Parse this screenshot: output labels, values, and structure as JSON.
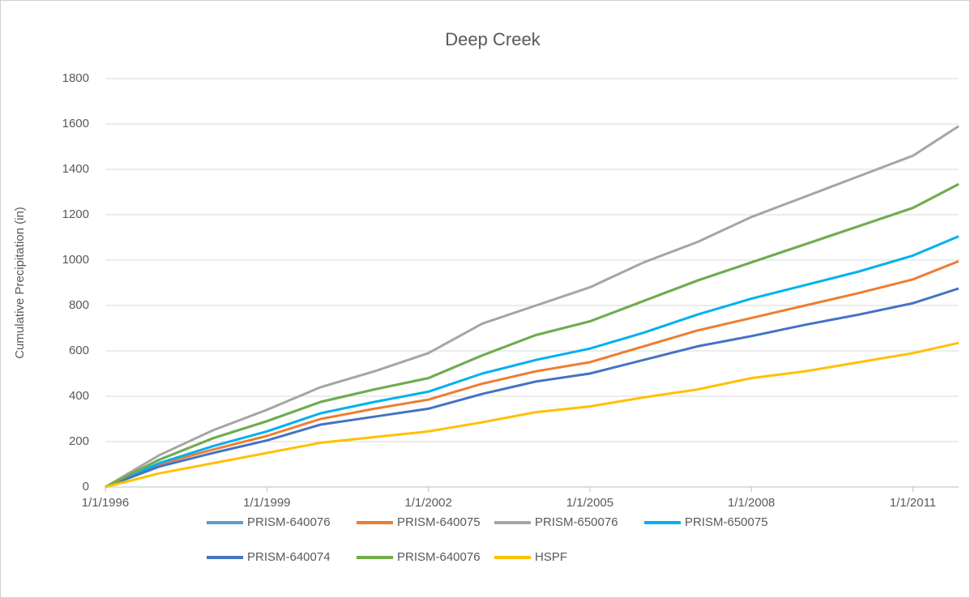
{
  "chart_data": {
    "type": "line",
    "title": "Deep Creek",
    "y_label": "Cumulative Precipitation (in)",
    "x": [
      1996,
      1997,
      1998,
      1999,
      2000,
      2001,
      2002,
      2003,
      2004,
      2005,
      2006,
      2007,
      2008,
      2009,
      2010,
      2011,
      2011.85
    ],
    "xlim": [
      1996,
      2011.85
    ],
    "xticks": [
      {
        "value": 1996,
        "label": "1/1/1996"
      },
      {
        "value": 1999,
        "label": "1/1/1999"
      },
      {
        "value": 2002,
        "label": "1/1/2002"
      },
      {
        "value": 2005,
        "label": "1/1/2005"
      },
      {
        "value": 2008,
        "label": "1/1/2008"
      },
      {
        "value": 2011,
        "label": "1/1/2011"
      }
    ],
    "ylim": [
      0,
      1800
    ],
    "yticks": [
      0,
      200,
      400,
      600,
      800,
      1000,
      1200,
      1400,
      1600,
      1800
    ],
    "grid": true,
    "legend": "bottom",
    "series": [
      {
        "name": "PRISM-640076",
        "color": "#5b9bd5",
        "values": [
          0,
          120,
          215,
          290,
          375,
          430,
          480,
          580,
          670,
          730,
          820,
          910,
          990,
          1070,
          1150,
          1230,
          1335
        ]
      },
      {
        "name": "PRISM-640075",
        "color": "#ed7d31",
        "values": [
          0,
          100,
          165,
          225,
          300,
          345,
          385,
          455,
          510,
          550,
          620,
          690,
          745,
          800,
          855,
          915,
          995
        ]
      },
      {
        "name": "PRISM-650076",
        "color": "#a5a5a5",
        "values": [
          0,
          140,
          250,
          340,
          440,
          510,
          590,
          720,
          800,
          880,
          990,
          1080,
          1190,
          1280,
          1370,
          1460,
          1590
        ]
      },
      {
        "name": "PRISM-650075",
        "color": "#00b0f0",
        "values": [
          0,
          105,
          180,
          245,
          325,
          375,
          420,
          500,
          560,
          610,
          680,
          760,
          830,
          890,
          950,
          1020,
          1105
        ]
      },
      {
        "name": "PRISM-640074",
        "color": "#4472c4",
        "values": [
          0,
          90,
          150,
          205,
          275,
          310,
          345,
          410,
          465,
          500,
          560,
          620,
          665,
          715,
          760,
          810,
          875
        ]
      },
      {
        "name": "PRISM-640076",
        "color": "#70ad47",
        "values": [
          0,
          120,
          215,
          290,
          375,
          430,
          480,
          580,
          670,
          730,
          820,
          910,
          990,
          1070,
          1150,
          1230,
          1335
        ]
      },
      {
        "name": "HSPF",
        "color": "#ffc000",
        "values": [
          0,
          60,
          105,
          150,
          195,
          220,
          245,
          285,
          330,
          355,
          395,
          430,
          480,
          510,
          550,
          590,
          635
        ]
      }
    ]
  }
}
